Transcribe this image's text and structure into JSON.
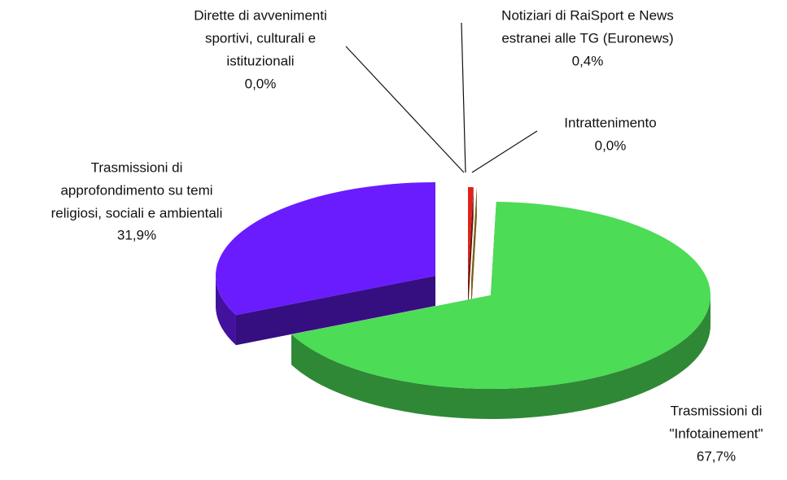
{
  "chart_data": {
    "type": "pie3d",
    "categories": [
      [
        "Notiziari di RaiSport e News",
        "estranei alle TG (Euronews)"
      ],
      [
        "Intrattenimento"
      ],
      [
        "Trasmissioni di",
        "\"Infotainement\""
      ],
      [
        "Trasmissioni di",
        "approfondimento  su temi",
        "religiosi, sociali e ambientali"
      ],
      [
        "Dirette di avvenimenti",
        "sportivi, culturali e",
        "istituzionali"
      ]
    ],
    "values": [
      0.4,
      0.0,
      67.7,
      31.9,
      0.0
    ],
    "value_labels": [
      "0,4%",
      "0,0%",
      "67,7%",
      "31,9%",
      "0,0%"
    ],
    "colors": [
      "#e0241c",
      "#e8c53a",
      "#4cdc56",
      "#6a1cff",
      "#3446c8"
    ]
  }
}
